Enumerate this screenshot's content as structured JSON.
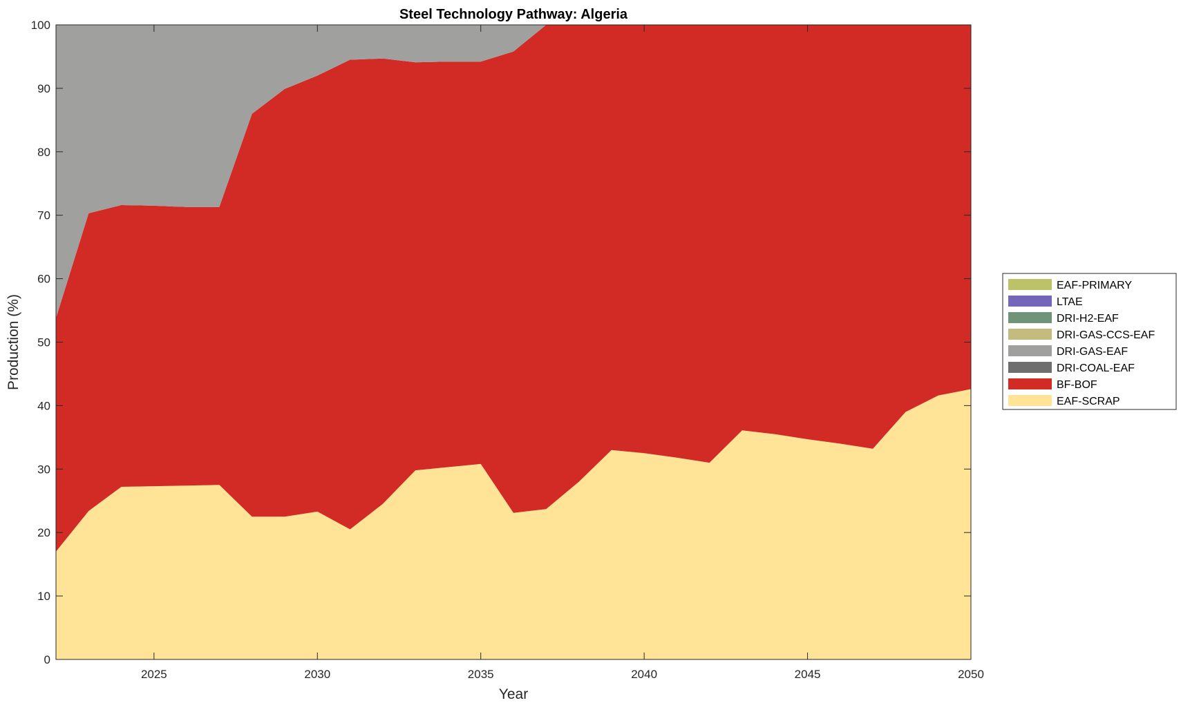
{
  "chart_data": {
    "type": "area",
    "stacked": true,
    "title": "Steel Technology Pathway: Algeria",
    "xlabel": "Year",
    "ylabel": "Production (%)",
    "xlim": [
      2022,
      2050
    ],
    "ylim": [
      0,
      100
    ],
    "xticks": [
      2025,
      2030,
      2035,
      2040,
      2045,
      2050
    ],
    "yticks": [
      0,
      10,
      20,
      30,
      40,
      50,
      60,
      70,
      80,
      90,
      100
    ],
    "grid": false,
    "legend_position": "right",
    "x": [
      2022,
      2023,
      2024,
      2025,
      2026,
      2027,
      2028,
      2029,
      2030,
      2031,
      2032,
      2033,
      2034,
      2035,
      2036,
      2037,
      2038,
      2039,
      2040,
      2041,
      2042,
      2043,
      2044,
      2045,
      2046,
      2047,
      2048,
      2049,
      2050
    ],
    "series": [
      {
        "name": "EAF-SCRAP",
        "color": "#ffe396",
        "values": [
          17.0,
          23.4,
          27.2,
          27.3,
          27.4,
          27.5,
          22.5,
          22.5,
          23.3,
          20.5,
          24.5,
          29.8,
          30.3,
          30.8,
          23.1,
          23.7,
          28.0,
          33.0,
          32.5,
          31.8,
          31.0,
          36.1,
          35.5,
          34.7,
          34.0,
          33.2,
          39.0,
          41.6,
          42.6
        ]
      },
      {
        "name": "BF-BOF",
        "color": "#d22a24",
        "values": [
          36.8,
          46.9,
          44.4,
          44.2,
          43.9,
          43.8,
          63.5,
          67.4,
          68.7,
          74.0,
          70.2,
          64.3,
          63.9,
          63.4,
          72.7,
          76.3,
          72.0,
          67.0,
          67.5,
          68.2,
          69.0,
          63.9,
          64.5,
          65.3,
          66.0,
          66.8,
          61.0,
          58.4,
          57.4
        ]
      },
      {
        "name": "DRI-COAL-EAF",
        "color": "#6e6e6e",
        "values": [
          0,
          0,
          0,
          0,
          0,
          0,
          0,
          0,
          0,
          0,
          0,
          0,
          0,
          0,
          0,
          0,
          0,
          0,
          0,
          0,
          0,
          0,
          0,
          0,
          0,
          0,
          0,
          0,
          0
        ]
      },
      {
        "name": "DRI-GAS-EAF",
        "color": "#a0a09e",
        "values": [
          46.2,
          29.7,
          28.4,
          28.5,
          28.7,
          28.7,
          14.0,
          10.1,
          8.0,
          5.5,
          5.3,
          5.9,
          5.8,
          5.8,
          4.2,
          0,
          0,
          0,
          0,
          0,
          0,
          0,
          0,
          0,
          0,
          0,
          0,
          0,
          0
        ]
      },
      {
        "name": "DRI-GAS-CCS-EAF",
        "color": "#c3bc7e",
        "values": [
          0,
          0,
          0,
          0,
          0,
          0,
          0,
          0,
          0,
          0,
          0,
          0,
          0,
          0,
          0,
          0,
          0,
          0,
          0,
          0,
          0,
          0,
          0,
          0,
          0,
          0,
          0,
          0,
          0
        ]
      },
      {
        "name": "DRI-H2-EAF",
        "color": "#6f947a",
        "values": [
          0,
          0,
          0,
          0,
          0,
          0,
          0,
          0,
          0,
          0,
          0,
          0,
          0,
          0,
          0,
          0,
          0,
          0,
          0,
          0,
          0,
          0,
          0,
          0,
          0,
          0,
          0,
          0,
          0
        ]
      },
      {
        "name": "LTAE",
        "color": "#7466b8",
        "values": [
          0,
          0,
          0,
          0,
          0,
          0,
          0,
          0,
          0,
          0,
          0,
          0,
          0,
          0,
          0,
          0,
          0,
          0,
          0,
          0,
          0,
          0,
          0,
          0,
          0,
          0,
          0,
          0,
          0
        ]
      },
      {
        "name": "EAF-PRIMARY",
        "color": "#bcc268",
        "values": [
          0,
          0,
          0,
          0,
          0,
          0,
          0,
          0,
          0,
          0,
          0,
          0,
          0,
          0,
          0,
          0,
          0,
          0,
          0,
          0,
          0,
          0,
          0,
          0,
          0,
          0,
          0,
          0,
          0
        ]
      }
    ]
  }
}
